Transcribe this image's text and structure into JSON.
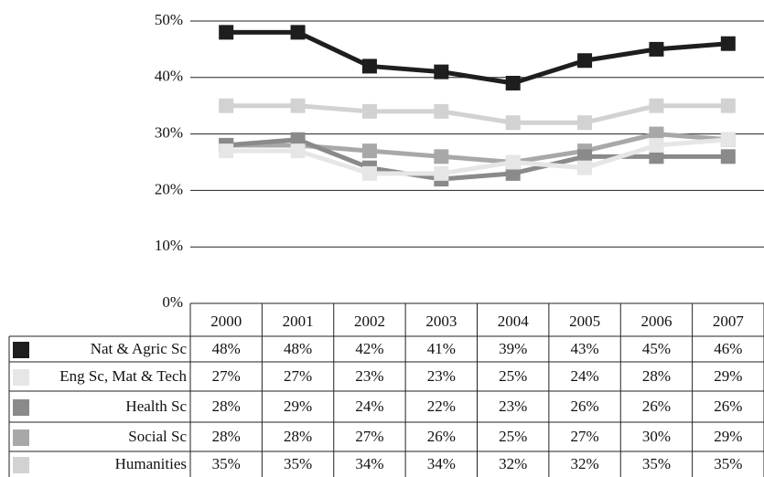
{
  "chart_data": {
    "type": "line",
    "categories": [
      "2000",
      "2001",
      "2002",
      "2003",
      "2004",
      "2005",
      "2006",
      "2007"
    ],
    "series": [
      {
        "name": "Nat & Agric Sc",
        "color": "#1e1e1e",
        "values": [
          48,
          48,
          42,
          41,
          39,
          43,
          45,
          46
        ],
        "value_labels": [
          "48%",
          "48%",
          "42%",
          "41%",
          "39%",
          "43%",
          "45%",
          "46%"
        ]
      },
      {
        "name": "Eng Sc, Mat & Tech",
        "color": "#e6e6e6",
        "values": [
          27,
          27,
          23,
          23,
          25,
          24,
          28,
          29
        ],
        "value_labels": [
          "27%",
          "27%",
          "23%",
          "23%",
          "25%",
          "24%",
          "28%",
          "29%"
        ]
      },
      {
        "name": "Health Sc",
        "color": "#8a8a8a",
        "values": [
          28,
          29,
          24,
          22,
          23,
          26,
          26,
          26
        ],
        "value_labels": [
          "28%",
          "29%",
          "24%",
          "22%",
          "23%",
          "26%",
          "26%",
          "26%"
        ]
      },
      {
        "name": "Social Sc",
        "color": "#a8a8a8",
        "values": [
          28,
          28,
          27,
          26,
          25,
          27,
          30,
          29
        ],
        "value_labels": [
          "28%",
          "28%",
          "27%",
          "26%",
          "25%",
          "27%",
          "30%",
          "29%"
        ]
      },
      {
        "name": "Humanities",
        "color": "#d2d2d2",
        "values": [
          35,
          35,
          34,
          34,
          32,
          32,
          35,
          35
        ],
        "value_labels": [
          "35%",
          "35%",
          "34%",
          "34%",
          "32%",
          "32%",
          "35%",
          "35%"
        ]
      }
    ],
    "ylim": [
      0,
      50
    ],
    "yticks": [
      {
        "value": 0,
        "label": "0%"
      },
      {
        "value": 10,
        "label": "10%"
      },
      {
        "value": 20,
        "label": "20%"
      },
      {
        "value": 30,
        "label": "30%"
      },
      {
        "value": 40,
        "label": "40%"
      },
      {
        "value": 50,
        "label": "50%"
      }
    ],
    "grid": true
  }
}
